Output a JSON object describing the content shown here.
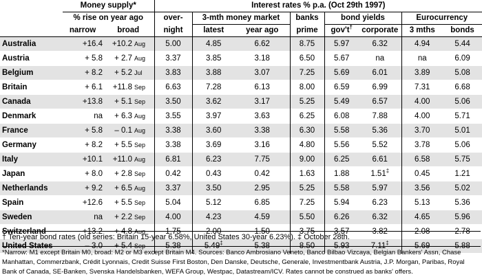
{
  "headers": {
    "money_supply": "Money supply*",
    "pct_rise": "% rise on year ago",
    "narrow": "narrow",
    "broad": "broad",
    "interest_title": "Interest rates % p.a. (Oct 29th 1997)",
    "overnight": "over-",
    "overnight2": "night",
    "mm": "3-mth money market",
    "latest": "latest",
    "year_ago": "year ago",
    "banks": "banks",
    "prime": "prime",
    "bond_yields": "bond yields",
    "govt": "gov't",
    "govt_mark": "†",
    "corporate": "corporate",
    "euro": "Eurocurrency",
    "three_mths": "3 mths",
    "bonds": "bonds"
  },
  "rows": [
    {
      "country": "Australia",
      "narrow": "+16.4",
      "broad": "+10.2",
      "month": "Aug",
      "overnight": "5.00",
      "latest": "4.85",
      "latest_mark": "",
      "year_ago": "6.62",
      "prime": "8.75",
      "govt": "5.97",
      "corporate": "6.32",
      "corp_mark": "",
      "euro3": "4.94",
      "bonds": "5.44"
    },
    {
      "country": "Austria",
      "narrow": "+ 5.8",
      "broad": "+ 2.7",
      "month": "Aug",
      "overnight": "3.37",
      "latest": "3.85",
      "latest_mark": "",
      "year_ago": "3.18",
      "prime": "6.50",
      "govt": "5.67",
      "corporate": "na",
      "corp_mark": "",
      "euro3": "na",
      "bonds": "6.09"
    },
    {
      "country": "Belgium",
      "narrow": "+ 8.2",
      "broad": "+ 5.2",
      "month": "Jul",
      "overnight": "3.83",
      "latest": "3.88",
      "latest_mark": "",
      "year_ago": "3.07",
      "prime": "7.25",
      "govt": "5.69",
      "corporate": "6.01",
      "corp_mark": "",
      "euro3": "3.89",
      "bonds": "5.08"
    },
    {
      "country": "Britain",
      "narrow": "+ 6.1",
      "broad": "+11.8",
      "month": "Sep",
      "overnight": "6.63",
      "latest": "7.28",
      "latest_mark": "",
      "year_ago": "6.13",
      "prime": "8.00",
      "govt": "6.59",
      "corporate": "6.99",
      "corp_mark": "",
      "euro3": "7.31",
      "bonds": "6.68"
    },
    {
      "country": "Canada",
      "narrow": "+13.8",
      "broad": "+ 5.1",
      "month": "Sep",
      "overnight": "3.50",
      "latest": "3.62",
      "latest_mark": "",
      "year_ago": "3.17",
      "prime": "5.25",
      "govt": "5.49",
      "corporate": "6.57",
      "corp_mark": "",
      "euro3": "4.00",
      "bonds": "5.06"
    },
    {
      "country": "Denmark",
      "narrow": "na",
      "broad": "+ 6.3",
      "month": "Aug",
      "overnight": "3.55",
      "latest": "3.97",
      "latest_mark": "",
      "year_ago": "3.63",
      "prime": "6.25",
      "govt": "6.08",
      "corporate": "7.88",
      "corp_mark": "",
      "euro3": "4.00",
      "bonds": "5.71"
    },
    {
      "country": "France",
      "narrow": "+ 5.8",
      "broad": "– 0.1",
      "month": "Aug",
      "overnight": "3.38",
      "latest": "3.60",
      "latest_mark": "",
      "year_ago": "3.38",
      "prime": "6.30",
      "govt": "5.58",
      "corporate": "5.36",
      "corp_mark": "",
      "euro3": "3.70",
      "bonds": "5.01"
    },
    {
      "country": "Germany",
      "narrow": "+ 8.2",
      "broad": "+ 5.5",
      "month": "Sep",
      "overnight": "3.38",
      "latest": "3.69",
      "latest_mark": "",
      "year_ago": "3.16",
      "prime": "4.80",
      "govt": "5.56",
      "corporate": "5.52",
      "corp_mark": "",
      "euro3": "3.78",
      "bonds": "5.06"
    },
    {
      "country": "Italy",
      "narrow": "+10.1",
      "broad": "+11.0",
      "month": "Aug",
      "overnight": "6.81",
      "latest": "6.23",
      "latest_mark": "",
      "year_ago": "7.75",
      "prime": "9.00",
      "govt": "6.25",
      "corporate": "6.61",
      "corp_mark": "",
      "euro3": "6.58",
      "bonds": "5.75"
    },
    {
      "country": "Japan",
      "narrow": "+ 8.0",
      "broad": "+ 2.8",
      "month": "Sep",
      "overnight": "0.42",
      "latest": "0.43",
      "latest_mark": "",
      "year_ago": "0.42",
      "prime": "1.63",
      "govt": "1.88",
      "corporate": "1.51",
      "corp_mark": "‡",
      "euro3": "0.45",
      "bonds": "1.21"
    },
    {
      "country": "Netherlands",
      "narrow": "+ 9.2",
      "broad": "+ 6.5",
      "month": "Aug",
      "overnight": "3.37",
      "latest": "3.50",
      "latest_mark": "",
      "year_ago": "2.95",
      "prime": "5.25",
      "govt": "5.58",
      "corporate": "5.97",
      "corp_mark": "",
      "euro3": "3.56",
      "bonds": "5.02"
    },
    {
      "country": "Spain",
      "narrow": "+12.6",
      "broad": "+ 5.5",
      "month": "Sep",
      "overnight": "5.04",
      "latest": "5.12",
      "latest_mark": "",
      "year_ago": "6.85",
      "prime": "7.25",
      "govt": "5.94",
      "corporate": "6.23",
      "corp_mark": "",
      "euro3": "5.13",
      "bonds": "5.36"
    },
    {
      "country": "Sweden",
      "narrow": "na",
      "broad": "+ 2.2",
      "month": "Sep",
      "overnight": "4.00",
      "latest": "4.23",
      "latest_mark": "",
      "year_ago": "4.59",
      "prime": "5.50",
      "govt": "6.26",
      "corporate": "6.32",
      "corp_mark": "",
      "euro3": "4.65",
      "bonds": "5.96"
    },
    {
      "country": "Switzerland",
      "narrow": "+13.2",
      "broad": "+ 4.8",
      "month": "Aug",
      "overnight": "1.75",
      "latest": "2.00",
      "latest_mark": "",
      "year_ago": "1.50",
      "prime": "3.75",
      "govt": "3.57",
      "corporate": "3.82",
      "corp_mark": "",
      "euro3": "2.08",
      "bonds": "2.78"
    },
    {
      "country": "United States",
      "narrow": "– 3.0",
      "broad": "+ 5.4",
      "month": "Sep",
      "overnight": "5.38",
      "latest": "5.49",
      "latest_mark": "‡",
      "year_ago": "5.38",
      "prime": "8.50",
      "govt": "5.93",
      "corporate": "7.11",
      "corp_mark": "‡",
      "euro3": "5.69",
      "bonds": "5.88"
    }
  ],
  "footnotes": {
    "dagger": "† Ten-year bond rates (old series: Britain 15-year 6.58%, United States 30-year 6.23%).   ‡ October 28th.",
    "narrow_note": "*Narrow: M1 except Britain M0, broad: M2 or M3 except Britain M4. Sources: Banco Ambrosiano Veneto, Banco Bilbao Vizcaya, Belgian Bankers' Assn, Chase Manhattan, Commerzbank, Crédit Lyonnais, Credit Suisse First Boston, Den Danske, Deutsche, Generale, Investmentbank Austria, J.P. Morgan, Paribas, Royal Bank of Canada, SE-Banken, Svenska Handelsbanken, WEFA Group, Westpac, Datastream/ICV. Rates cannot be construed as banks' offers."
  }
}
